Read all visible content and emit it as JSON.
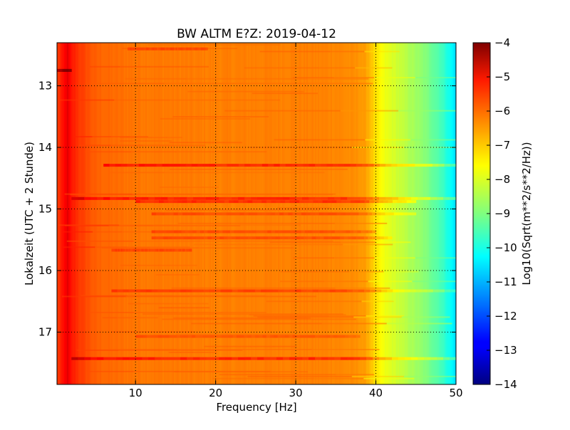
{
  "chart_data": {
    "type": "heatmap",
    "title": "BW ALTM E?Z: 2019-04-12",
    "xlabel": "Frequency [Hz]",
    "ylabel": "Lokalzeit (UTC + 2 Stunde)",
    "colorbar_label": "Log10(Sqrt(m**2/s**2/Hz))",
    "colormap": "jet",
    "x_range": [
      0.2,
      50
    ],
    "y_range": [
      12.3,
      17.85
    ],
    "y_inverted": true,
    "color_range": [
      -14,
      -4
    ],
    "grid": true,
    "x_ticks": [
      10,
      20,
      30,
      40,
      50
    ],
    "y_ticks": [
      13,
      14,
      15,
      16,
      17
    ],
    "colorbar_ticks": [
      -4,
      -5,
      -6,
      -7,
      -8,
      -9,
      -10,
      -11,
      -12,
      -13,
      -14
    ],
    "spectral_profile": {
      "frequency_hz": [
        0.3,
        1,
        1.5,
        2,
        2.5,
        3,
        4,
        5,
        7,
        10,
        15,
        20,
        25,
        30,
        35,
        38,
        39,
        40,
        41,
        42,
        43,
        44,
        45,
        46,
        47,
        48,
        49,
        50
      ],
      "log10_amplitude": [
        -5.8,
        -5.4,
        -5.0,
        -5.5,
        -5.6,
        -5.8,
        -6.0,
        -6.2,
        -6.3,
        -6.4,
        -6.45,
        -6.5,
        -6.5,
        -6.5,
        -6.55,
        -6.7,
        -6.9,
        -7.5,
        -7.9,
        -8.1,
        -8.3,
        -8.5,
        -8.7,
        -8.9,
        -9.2,
        -9.5,
        -10.0,
        -10.6
      ]
    },
    "horizontal_bands": [
      {
        "time": 12.4,
        "fmin": 9,
        "fmax": 19,
        "offset": 0.5
      },
      {
        "time": 12.75,
        "fmin": 0.2,
        "fmax": 2,
        "offset": 1.3
      },
      {
        "time": 14.29,
        "fmin": 6,
        "fmax": 50,
        "offset": 0.9
      },
      {
        "time": 14.83,
        "fmin": 2,
        "fmax": 50,
        "offset": 0.9
      },
      {
        "time": 14.88,
        "fmin": 10,
        "fmax": 45,
        "offset": 0.8
      },
      {
        "time": 15.08,
        "fmin": 12,
        "fmax": 45,
        "offset": 0.5
      },
      {
        "time": 15.37,
        "fmin": 12,
        "fmax": 40,
        "offset": 0.5
      },
      {
        "time": 15.47,
        "fmin": 12,
        "fmax": 42,
        "offset": 0.5
      },
      {
        "time": 15.67,
        "fmin": 7,
        "fmax": 17,
        "offset": 0.5
      },
      {
        "time": 16.33,
        "fmin": 7,
        "fmax": 50,
        "offset": 0.6
      },
      {
        "time": 17.07,
        "fmin": 10,
        "fmax": 38,
        "offset": 0.4
      },
      {
        "time": 17.43,
        "fmin": 2,
        "fmax": 50,
        "offset": 0.9
      }
    ]
  }
}
